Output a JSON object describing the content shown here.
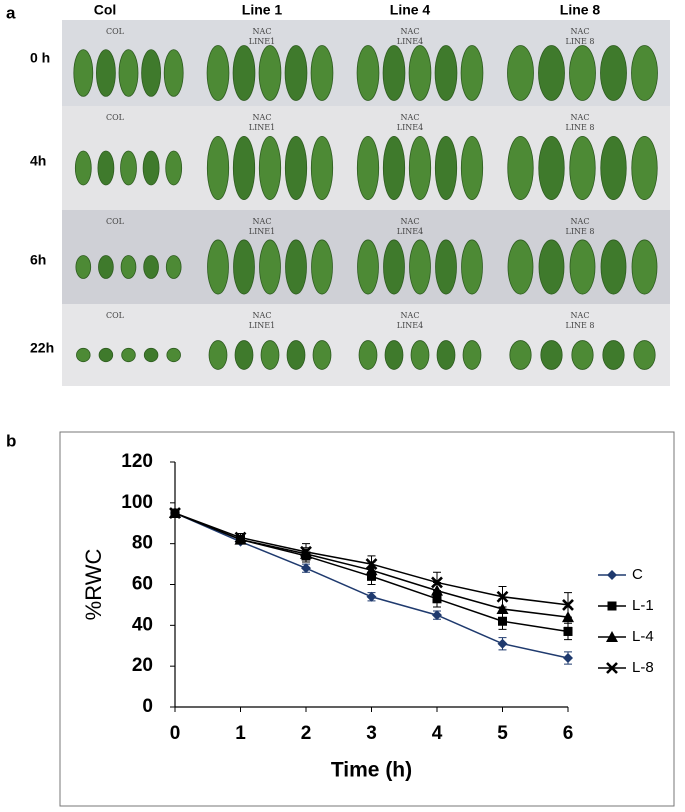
{
  "panel_a": {
    "label": "a",
    "columns": [
      "Col",
      "Line 1",
      "Line 4",
      "Line 8"
    ],
    "rows": [
      "0 h",
      "4h",
      "6h",
      "22h"
    ],
    "tags": [
      [
        "COL"
      ],
      [
        "NAC",
        "LINE1"
      ],
      [
        "NAC",
        "LINE4"
      ],
      [
        "NAC",
        "LINE 8"
      ]
    ]
  },
  "panel_b": {
    "label": "b"
  },
  "chart_data": {
    "type": "line",
    "x_label": "Time (h)",
    "y_label": "%RWC",
    "x": [
      0,
      1,
      2,
      3,
      4,
      5,
      6
    ],
    "xlim": [
      0,
      6
    ],
    "xticks": [
      0,
      1,
      2,
      3,
      4,
      5,
      6
    ],
    "ylim": [
      0,
      120
    ],
    "yticks": [
      0,
      20,
      40,
      60,
      80,
      100,
      120
    ],
    "grid": false,
    "legend": "right",
    "series": [
      {
        "name": "C",
        "color": "#1f3a6e",
        "marker": "diamond",
        "values": [
          95,
          81,
          68,
          54,
          45,
          31,
          24
        ],
        "errors": [
          1,
          1,
          2,
          2,
          2,
          3,
          3
        ]
      },
      {
        "name": "L-1",
        "color": "#000000",
        "marker": "square",
        "values": [
          95,
          82,
          74,
          64,
          53,
          42,
          37
        ],
        "errors": [
          1,
          2,
          3,
          4,
          4,
          4,
          4
        ]
      },
      {
        "name": "L-4",
        "color": "#000000",
        "marker": "triangle",
        "values": [
          95,
          82,
          75,
          67,
          57,
          48,
          44
        ],
        "errors": [
          1,
          2,
          3,
          4,
          4,
          5,
          5
        ]
      },
      {
        "name": "L-8",
        "color": "#000000",
        "marker": "cross",
        "values": [
          95,
          83,
          76,
          70,
          61,
          54,
          50
        ],
        "errors": [
          1,
          2,
          4,
          4,
          5,
          5,
          6
        ]
      }
    ]
  }
}
